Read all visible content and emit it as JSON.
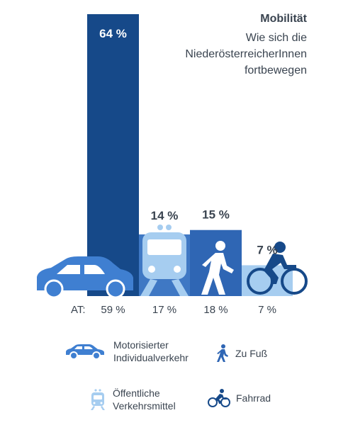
{
  "title": "Mobilität",
  "subtitle_lines": [
    "Wie sich die",
    "NiederösterreicherInnen",
    "fortbewegen"
  ],
  "colors": {
    "mit": "#164989",
    "oev": "#3f78c4",
    "fuss": "#2f66b4",
    "rad": "#a6cdf0",
    "car_icon": "#3f7fd1",
    "text": "#3a4450"
  },
  "chart_data": {
    "type": "bar",
    "categories": [
      "Motorisierter Individualverkehr",
      "Öffentliche Verkehrsmittel",
      "Zu Fuß",
      "Fahrrad"
    ],
    "series": [
      {
        "values": [
          64,
          14,
          15,
          7
        ],
        "labels": [
          "64 %",
          "14 %",
          "15 %",
          "7 %"
        ]
      }
    ],
    "at_prefix": "AT:",
    "at_labels": [
      "59 %",
      "17 %",
      "18 %",
      "7 %"
    ],
    "at_values": [
      59,
      17,
      18,
      7
    ],
    "ylim": [
      0,
      64
    ]
  },
  "legend": [
    {
      "icon": "car-icon",
      "lines": [
        "Motorisierter",
        "Individualverkehr"
      ]
    },
    {
      "icon": "pedestrian-icon",
      "lines": [
        "Zu Fuß"
      ]
    },
    {
      "icon": "train-icon",
      "lines": [
        "Öffentliche",
        "Verkehrsmittel"
      ]
    },
    {
      "icon": "bicycle-icon",
      "lines": [
        "Fahrrad"
      ]
    }
  ]
}
